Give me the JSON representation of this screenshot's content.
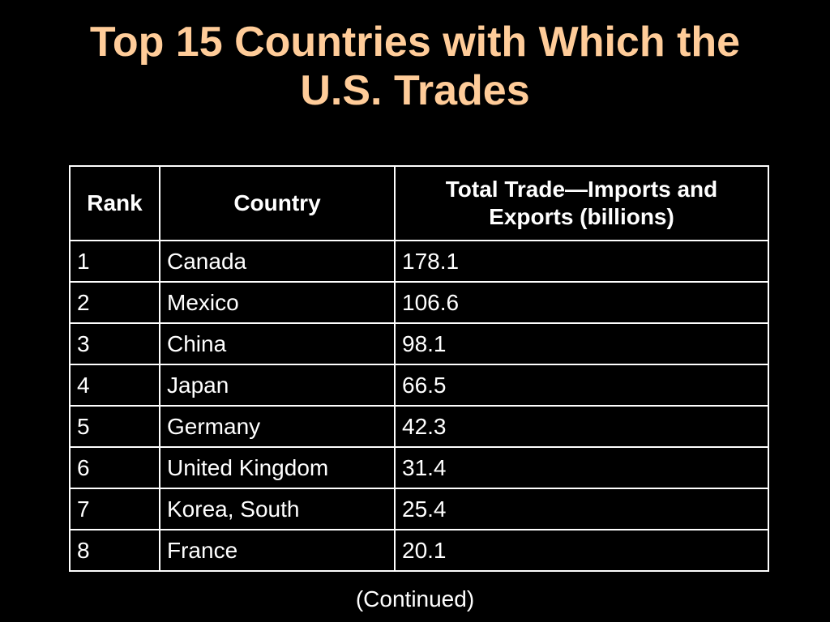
{
  "slide": {
    "title_line1": "Top 15 Countries with Which the",
    "title_line2": "U.S. Trades",
    "title_color": "#FFCC99",
    "background_color": "#000000",
    "footer": "(Continued)"
  },
  "table": {
    "headers": {
      "rank": "Rank",
      "country": "Country",
      "total_line1": "Total Trade—Imports and",
      "total_line2": "Exports (billions)"
    },
    "rows": [
      {
        "rank": "1",
        "country": "Canada",
        "total": "178.1"
      },
      {
        "rank": "2",
        "country": "Mexico",
        "total": "106.6"
      },
      {
        "rank": "3",
        "country": "China",
        "total": "98.1"
      },
      {
        "rank": "4",
        "country": "Japan",
        "total": "66.5"
      },
      {
        "rank": "5",
        "country": "Germany",
        "total": "42.3"
      },
      {
        "rank": "6",
        "country": "United Kingdom",
        "total": "31.4"
      },
      {
        "rank": "7",
        "country": "Korea, South",
        "total": "25.4"
      },
      {
        "rank": "8",
        "country": "France",
        "total": "20.1"
      }
    ]
  }
}
